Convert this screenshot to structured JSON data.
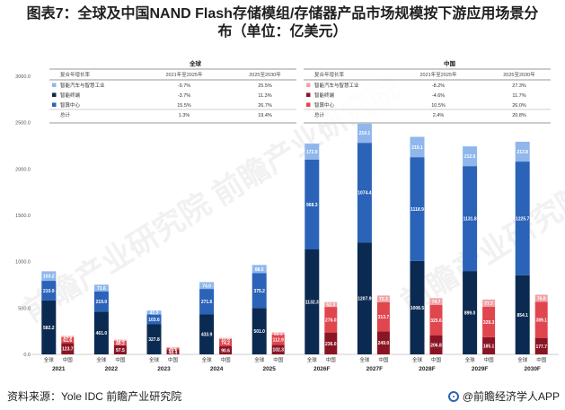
{
  "title_line1": "图表7：全球及中国NAND Flash存储模组/存储器产品市场规模按下游应用场景分",
  "title_line2": "布（单位：亿美元）",
  "source": "资料来源：Yole IDC 前瞻产业研究院",
  "brand": "@前瞻经济学人APP",
  "watermarks": [
    "前瞻产业研究院",
    "前瞻产业研究院",
    "前瞻产业研究院"
  ],
  "colors": {
    "auto": "#8fb7ec",
    "terminal": "#2a63b8",
    "dc": "#0b2a52",
    "cn_auto": "#f0a3a8",
    "cn_terminal": "#e0464e",
    "cn_dc": "#8a1424"
  },
  "legend_tables": [
    {
      "region": "全球",
      "h1": "复合年增长率",
      "h2": "2021年至2025年",
      "h3": "2025至2030年",
      "rows": [
        {
          "name": "智能汽车与智慧工业",
          "a": "-9.7%",
          "b": "25.5%",
          "color": "#8fb7ec"
        },
        {
          "name": "智能终端",
          "a": "-3.7%",
          "b": "11.3%",
          "color": "#0b2a52"
        },
        {
          "name": "智算中心",
          "a": "15.5%",
          "b": "26.7%",
          "color": "#2a63b8"
        },
        {
          "name": "总计",
          "a": "1.3%",
          "b": "19.4%",
          "color": ""
        }
      ]
    },
    {
      "region": "中国",
      "h1": "复合年增长率",
      "h2": "2021年至2025年",
      "h3": "2025至2030年",
      "rows": [
        {
          "name": "智能汽车与智慧工业",
          "a": "-8.2%",
          "b": "27.3%",
          "color": "#f0a3a8"
        },
        {
          "name": "智能终端",
          "a": "-4.6%",
          "b": "11.7%",
          "color": "#8a1424"
        },
        {
          "name": "智算中心",
          "a": "10.5%",
          "b": "26.0%",
          "color": "#e0464e"
        },
        {
          "name": "总计",
          "a": "2.4%",
          "b": "20.8%",
          "color": ""
        }
      ]
    }
  ],
  "chart_data": {
    "type": "bar",
    "stacked": true,
    "ylim": [
      0,
      3000
    ],
    "yticks": [
      "0.0",
      "500.0",
      "1000.0",
      "1500.0",
      "2000.0",
      "2500.0",
      "3000.0"
    ],
    "categories": [
      "2021",
      "2022",
      "2023",
      "2024",
      "2025",
      "2026F",
      "2027F",
      "2028F",
      "2029F",
      "2030F"
    ],
    "sub_labels": [
      "全球",
      "中国"
    ],
    "global": {
      "dc": [
        582.2,
        461.0,
        327.8,
        433.9,
        501.0,
        1132.3,
        1207.9,
        1008.5,
        899.0,
        854.1
      ],
      "terminal": [
        210.9,
        219.0,
        103.6,
        271.6,
        375.2,
        968.3,
        1074.4,
        1118.9,
        1131.8,
        1225.7
      ],
      "auto": [
        103.2,
        71.6,
        41.2,
        74.0,
        88.5,
        172.9,
        219.1,
        219.1,
        212.9,
        213.8
      ]
    },
    "china": {
      "dc": [
        123.7,
        97.5,
        48.4,
        90.6,
        102.3,
        236.0,
        249.0,
        206.8,
        185.1,
        177.7
      ],
      "terminal": [
        61.6,
        49.2,
        21.2,
        74.2,
        112.9,
        276.0,
        313.7,
        325.6,
        329.3,
        389.1
      ],
      "auto": [
        14.5,
        12.5,
        9.4,
        12.8,
        22.1,
        52.3,
        72.2,
        74.7,
        77.7,
        76.8
      ]
    }
  }
}
